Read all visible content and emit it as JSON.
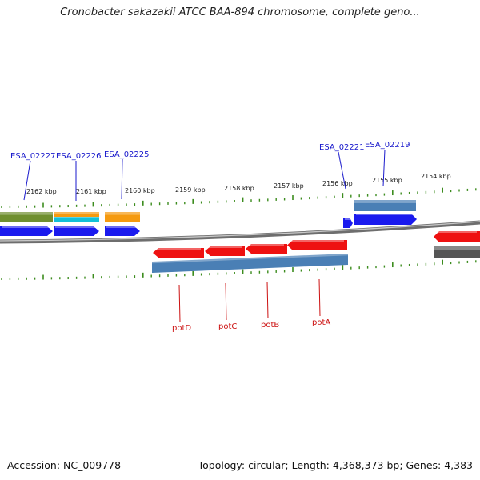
{
  "title": "Cronobacter sakazakii ATCC BAA-894 chromosome, complete geno...",
  "footer": {
    "accession": "Accession: NC_009778",
    "summary": "Topology: circular; Length: 4,368,373 bp; Genes: 4,383"
  },
  "colors": {
    "backbone": "#8a8a8a",
    "tick": "#3c8c1e",
    "gene_label": "#1a1acc",
    "pot_label": "#cc1111",
    "gene_red": "#ee1111",
    "gene_blue": "#1a1aee",
    "gene_steel": "#4a7fb5",
    "gene_olive": "#6f8f2f",
    "gene_orange": "#f59a10",
    "gene_cyan": "#12c0d8",
    "gene_grey": "#555555"
  },
  "scale_labels": [
    "2162 kbp",
    "2161 kbp",
    "2160 kbp",
    "2159 kbp",
    "2158 kbp",
    "2157 kbp",
    "2156 kbp",
    "2155 kbp",
    "2154 kbp"
  ],
  "gene_labels_top": [
    "ESA_02227",
    "ESA_02226",
    "ESA_02225",
    "ESA_02221",
    "ESA_02219"
  ],
  "gene_labels_bottom": [
    "potD",
    "potC",
    "potB",
    "potA"
  ]
}
